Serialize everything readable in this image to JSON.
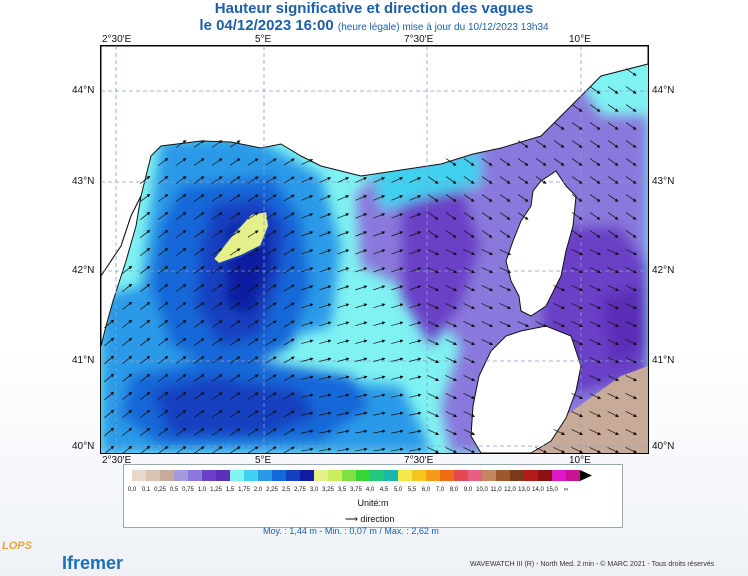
{
  "title": {
    "line1": "Hauteur significative et direction des vagues",
    "date": "le 04/12/2023 16:00",
    "detail": "(heure légale) mise à jour du 10/12/2023 13h34"
  },
  "axes": {
    "lon_labels": [
      "2°30'E",
      "5°E",
      "7°30'E",
      "10°E"
    ],
    "lat_labels": [
      "44°N",
      "43°N",
      "42°N",
      "41°N",
      "40°N"
    ]
  },
  "legend": {
    "levels": [
      "0,0",
      "0,1",
      "0,25",
      "0,5",
      "0,75",
      "1,0",
      "1,25",
      "1,5",
      "1,75",
      "2,0",
      "2,25",
      "2,5",
      "2,75",
      "3,0",
      "3,25",
      "3,5",
      "3,75",
      "4,0",
      "4,5",
      "5,0",
      "5,5",
      "6,0",
      "7,0",
      "8,0",
      "9,0",
      "10,0",
      "11,0",
      "12,0",
      "13,0",
      "14,0",
      "15,0"
    ],
    "overflow": "∞",
    "colors": [
      "#e8d8c8",
      "#d8c2b0",
      "#c8aa98",
      "#a39ae0",
      "#8a78dc",
      "#6b3fc7",
      "#5b2fb7",
      "#7ff2f2",
      "#40d0f0",
      "#2a9ae8",
      "#1668d8",
      "#1440c0",
      "#0f1ea0",
      "#e6f08a",
      "#c9ef5c",
      "#7fe046",
      "#35d63a",
      "#22c97a",
      "#1ab8a8",
      "#f3e94a",
      "#f7c51c",
      "#f59a1a",
      "#f06d14",
      "#e34a50",
      "#e95f83",
      "#c0885c",
      "#9c5a2a",
      "#7a3a1a",
      "#b21b1b",
      "#8c1010",
      "#e018c8",
      "#c81292"
    ],
    "unit": "Unité:m"
  },
  "direction_label": "direction",
  "stats": "Moy. : 1,44 m  -  Min. : 0,07 m / Max. : 2,62 m",
  "credit": "WAVEWATCH III (R) - North Med. 2 min - © MARC 2021 - Tous droits réservés",
  "logos": {
    "left": "LOPS",
    "right": "Ifremer"
  },
  "colors": {
    "title": "#1e5fa8",
    "land": "#ffffff",
    "coast": "#111111"
  }
}
